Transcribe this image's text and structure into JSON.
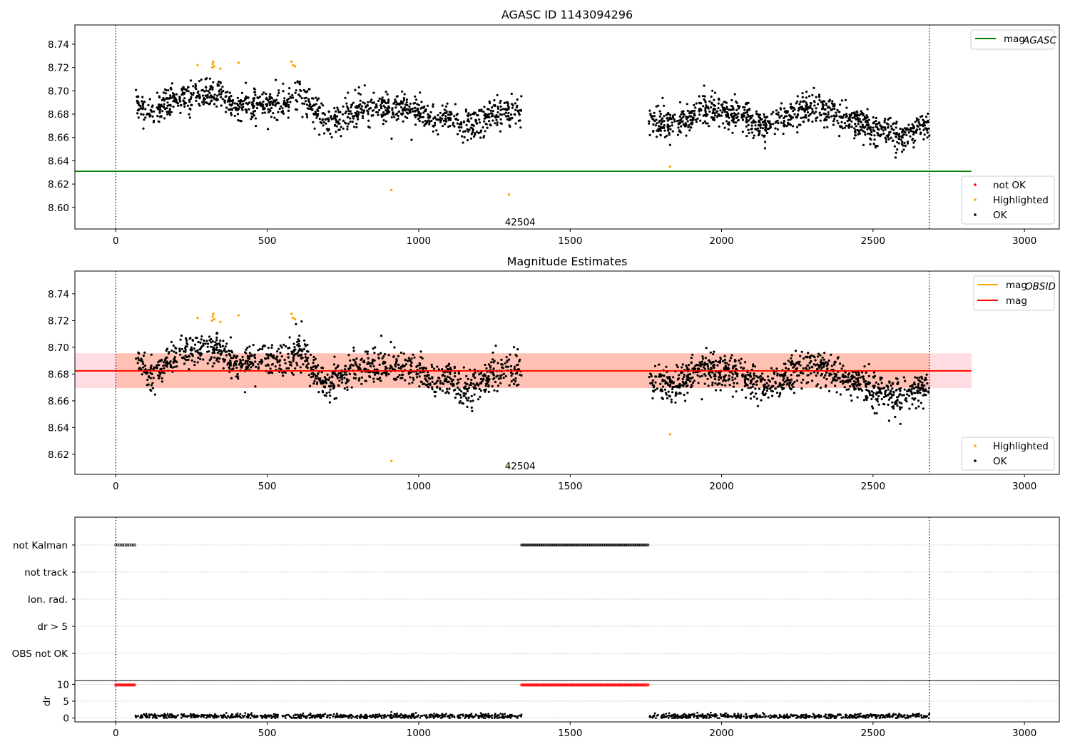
{
  "chart_data": [
    {
      "type": "scatter",
      "title": "AGASC ID 1143094296",
      "xlim": [
        -135,
        3115
      ],
      "ylim": [
        8.5815,
        8.7565
      ],
      "xticks": [
        0,
        500,
        1000,
        1500,
        2000,
        2500,
        3000
      ],
      "yticks": [
        8.6,
        8.62,
        8.64,
        8.66,
        8.68,
        8.7,
        8.72,
        8.74
      ],
      "ytick_labels": [
        "8.60",
        "8.62",
        "8.64",
        "8.66",
        "8.68",
        "8.70",
        "8.72",
        "8.74"
      ],
      "vlines": [
        0,
        2686
      ],
      "vline_color": "#8b008b",
      "hline": {
        "name": "mag_AGASC",
        "y": 8.631,
        "x_range": [
          -135,
          2825
        ],
        "color": "#008000"
      },
      "legend_lines": [
        {
          "label": "mag",
          "sub": "AGASC",
          "color": "#008000"
        }
      ],
      "legend_points": [
        {
          "label": "not OK",
          "color": "#ff0000"
        },
        {
          "label": "Highlighted",
          "color": "#ffa500"
        },
        {
          "label": "OK",
          "color": "#000000"
        }
      ],
      "annotation": {
        "text": "42504",
        "x": 1335,
        "y": 8.5875
      },
      "highlighted": [
        [
          270,
          8.722
        ],
        [
          318,
          8.72
        ],
        [
          320,
          8.723
        ],
        [
          322,
          8.725
        ],
        [
          325,
          8.721
        ],
        [
          345,
          8.719
        ],
        [
          405,
          8.724
        ],
        [
          580,
          8.725
        ],
        [
          585,
          8.722
        ],
        [
          592,
          8.721
        ],
        [
          910,
          8.615
        ],
        [
          1298,
          8.611
        ],
        [
          1830,
          8.635
        ]
      ],
      "ok_segments": [
        {
          "x0": 65,
          "x1": 1340,
          "n": 1150,
          "baseline": [
            [
              65,
              8.69
            ],
            [
              120,
              8.68
            ],
            [
              200,
              8.693
            ],
            [
              300,
              8.7
            ],
            [
              350,
              8.697
            ],
            [
              400,
              8.685
            ],
            [
              500,
              8.692
            ],
            [
              560,
              8.688
            ],
            [
              600,
              8.699
            ],
            [
              700,
              8.672
            ],
            [
              800,
              8.684
            ],
            [
              900,
              8.686
            ],
            [
              1000,
              8.683
            ],
            [
              1050,
              8.675
            ],
            [
              1100,
              8.678
            ],
            [
              1150,
              8.667
            ],
            [
              1220,
              8.677
            ],
            [
              1280,
              8.683
            ],
            [
              1340,
              8.682
            ]
          ],
          "spread": 0.0085
        },
        {
          "x0": 1760,
          "x1": 2686,
          "n": 950,
          "baseline": [
            [
              1760,
              8.672
            ],
            [
              1850,
              8.672
            ],
            [
              1950,
              8.685
            ],
            [
              2050,
              8.68
            ],
            [
              2150,
              8.67
            ],
            [
              2300,
              8.687
            ],
            [
              2400,
              8.678
            ],
            [
              2500,
              8.667
            ],
            [
              2600,
              8.662
            ],
            [
              2686,
              8.673
            ]
          ],
          "spread": 0.0085
        }
      ]
    },
    {
      "type": "scatter",
      "title": "Magnitude Estimates",
      "xlim": [
        -135,
        3115
      ],
      "ylim": [
        8.605,
        8.757
      ],
      "xticks": [
        0,
        500,
        1000,
        1500,
        2000,
        2500,
        3000
      ],
      "yticks": [
        8.62,
        8.64,
        8.66,
        8.68,
        8.7,
        8.72,
        8.74
      ],
      "ytick_labels": [
        "8.62",
        "8.64",
        "8.66",
        "8.68",
        "8.70",
        "8.72",
        "8.74"
      ],
      "vlines": [
        0,
        2686
      ],
      "vline_color": "#8b008b",
      "hline": {
        "name": "mag",
        "y": 8.6824,
        "x_range": [
          -135,
          2825
        ],
        "color": "#ff0000"
      },
      "band": {
        "y0": 8.6695,
        "y1": 8.6955,
        "x_range": [
          -135,
          2825
        ]
      },
      "obsid_band": {
        "y0": 8.6695,
        "y1": 8.6955,
        "x_range": [
          0,
          2686
        ]
      },
      "legend_lines": [
        {
          "label": "mag",
          "sub": "OBSID",
          "color": "#ffa500"
        },
        {
          "label": "mag",
          "sub": "",
          "color": "#ff0000"
        }
      ],
      "legend_points": [
        {
          "label": "Highlighted",
          "color": "#ffa500"
        },
        {
          "label": "OK",
          "color": "#000000"
        }
      ],
      "annotation": {
        "text": "42504",
        "x": 1335,
        "y": 8.6115
      },
      "highlighted": [
        [
          270,
          8.722
        ],
        [
          318,
          8.72
        ],
        [
          320,
          8.723
        ],
        [
          322,
          8.725
        ],
        [
          325,
          8.721
        ],
        [
          345,
          8.719
        ],
        [
          405,
          8.724
        ],
        [
          580,
          8.725
        ],
        [
          585,
          8.722
        ],
        [
          592,
          8.721
        ],
        [
          910,
          8.615
        ],
        [
          1298,
          8.611
        ],
        [
          1830,
          8.635
        ]
      ],
      "ok_segments": [
        {
          "x0": 65,
          "x1": 1340,
          "n": 1150,
          "baseline": [
            [
              65,
              8.69
            ],
            [
              120,
              8.68
            ],
            [
              200,
              8.693
            ],
            [
              300,
              8.7
            ],
            [
              350,
              8.697
            ],
            [
              400,
              8.685
            ],
            [
              500,
              8.692
            ],
            [
              560,
              8.688
            ],
            [
              600,
              8.699
            ],
            [
              700,
              8.672
            ],
            [
              800,
              8.684
            ],
            [
              900,
              8.686
            ],
            [
              1000,
              8.683
            ],
            [
              1050,
              8.675
            ],
            [
              1100,
              8.678
            ],
            [
              1150,
              8.667
            ],
            [
              1220,
              8.677
            ],
            [
              1280,
              8.683
            ],
            [
              1340,
              8.682
            ]
          ],
          "spread": 0.0085
        },
        {
          "x0": 1760,
          "x1": 2686,
          "n": 950,
          "baseline": [
            [
              1760,
              8.672
            ],
            [
              1850,
              8.672
            ],
            [
              1950,
              8.685
            ],
            [
              2050,
              8.68
            ],
            [
              2150,
              8.67
            ],
            [
              2300,
              8.687
            ],
            [
              2400,
              8.678
            ],
            [
              2500,
              8.667
            ],
            [
              2600,
              8.662
            ],
            [
              2686,
              8.673
            ]
          ],
          "spread": 0.0085
        }
      ]
    },
    {
      "type": "scatter",
      "title": "",
      "xlim": [
        -135,
        3115
      ],
      "categories": [
        "not Kalman",
        "not track",
        "Ion. rad.",
        "dr > 5",
        "OBS not OK"
      ],
      "vlines": [
        0,
        2686
      ],
      "vline_color": "#8b008b",
      "flag_runs": [
        {
          "category": "not Kalman",
          "x0": 0,
          "x1": 63,
          "n": 12
        },
        {
          "category": "not Kalman",
          "x0": 1340,
          "x1": 1757,
          "n": 120
        }
      ]
    },
    {
      "type": "scatter",
      "title": "",
      "ylabel": "dr",
      "xlim": [
        -135,
        3115
      ],
      "ylim": [
        -0.5,
        10.5
      ],
      "xticks": [
        0,
        500,
        1000,
        1500,
        2000,
        2500,
        3000
      ],
      "yticks": [
        0,
        5,
        10
      ],
      "ytick_labels": [
        "0",
        "5",
        "10"
      ],
      "vlines": [
        0,
        2686
      ],
      "vline_color": "#8b008b",
      "dr_red_runs": [
        {
          "x0": 0,
          "x1": 63,
          "y": 9.8,
          "n": 15
        },
        {
          "x0": 1340,
          "x1": 1757,
          "y": 9.8,
          "n": 125
        }
      ],
      "dr_segments": [
        {
          "x0": 65,
          "x1": 1340,
          "n": 700,
          "mean": 0.55
        },
        {
          "x0": 1760,
          "x1": 2686,
          "n": 520,
          "mean": 0.55
        }
      ],
      "dr_outliers": [
        [
          365,
          1.5
        ],
        [
          910,
          1.8
        ],
        [
          1920,
          1.6
        ]
      ]
    }
  ]
}
